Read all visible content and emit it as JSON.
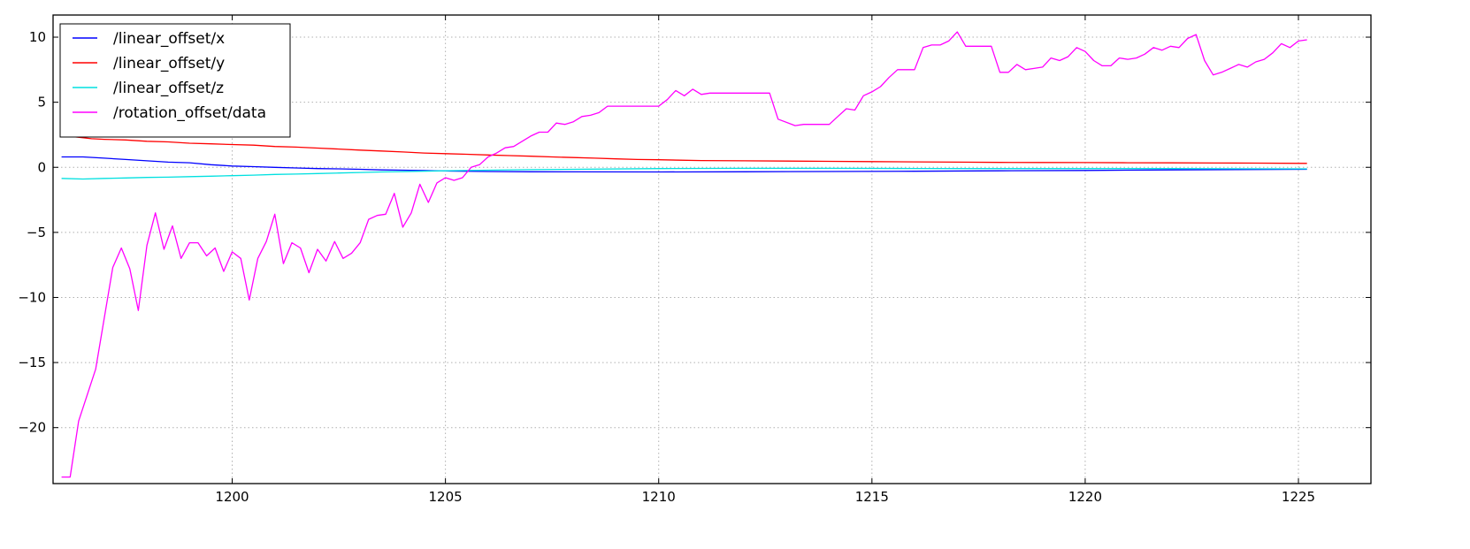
{
  "chart_data": {
    "type": "line",
    "title": "",
    "xlabel": "",
    "ylabel": "",
    "xlim": [
      1195.8,
      1226.7
    ],
    "ylim": [
      -24.3,
      11.7
    ],
    "grid": true,
    "legend_position": "upper-left",
    "xticks": [
      1200,
      1205,
      1210,
      1215,
      1220,
      1225
    ],
    "xtick_labels": [
      "1200",
      "1205",
      "1210",
      "1215",
      "1220",
      "1225"
    ],
    "yticks": [
      10,
      5,
      0,
      -5,
      -10,
      -15,
      -20
    ],
    "ytick_labels": [
      "10",
      "5",
      "0",
      "−5",
      "−10",
      "−15",
      "−20"
    ],
    "series": [
      {
        "name": "/linear_offset/x",
        "color": "#0000ff",
        "points": [
          [
            1196.0,
            0.8
          ],
          [
            1196.5,
            0.8
          ],
          [
            1197.0,
            0.7
          ],
          [
            1197.5,
            0.6
          ],
          [
            1198.0,
            0.5
          ],
          [
            1198.5,
            0.4
          ],
          [
            1199.0,
            0.35
          ],
          [
            1199.5,
            0.2
          ],
          [
            1200.0,
            0.1
          ],
          [
            1200.5,
            0.05
          ],
          [
            1201.0,
            0.0
          ],
          [
            1201.5,
            -0.05
          ],
          [
            1202.0,
            -0.1
          ],
          [
            1202.5,
            -0.12
          ],
          [
            1203.0,
            -0.15
          ],
          [
            1203.5,
            -0.2
          ],
          [
            1204.0,
            -0.22
          ],
          [
            1204.5,
            -0.25
          ],
          [
            1205.0,
            -0.28
          ],
          [
            1206.0,
            -0.32
          ],
          [
            1207.0,
            -0.34
          ],
          [
            1208.0,
            -0.35
          ],
          [
            1210.0,
            -0.36
          ],
          [
            1212.0,
            -0.34
          ],
          [
            1214.0,
            -0.32
          ],
          [
            1216.0,
            -0.3
          ],
          [
            1218.0,
            -0.27
          ],
          [
            1220.0,
            -0.24
          ],
          [
            1222.0,
            -0.2
          ],
          [
            1225.2,
            -0.15
          ]
        ]
      },
      {
        "name": "/linear_offset/y",
        "color": "#ff0000",
        "points": [
          [
            1196.0,
            2.35
          ],
          [
            1196.3,
            2.35
          ],
          [
            1196.7,
            2.2
          ],
          [
            1197.0,
            2.15
          ],
          [
            1197.5,
            2.1
          ],
          [
            1198.0,
            2.0
          ],
          [
            1198.5,
            1.95
          ],
          [
            1199.0,
            1.85
          ],
          [
            1199.5,
            1.8
          ],
          [
            1200.0,
            1.75
          ],
          [
            1200.5,
            1.7
          ],
          [
            1201.0,
            1.6
          ],
          [
            1201.5,
            1.55
          ],
          [
            1202.0,
            1.48
          ],
          [
            1202.5,
            1.4
          ],
          [
            1203.0,
            1.32
          ],
          [
            1203.5,
            1.25
          ],
          [
            1204.0,
            1.18
          ],
          [
            1204.5,
            1.1
          ],
          [
            1205.0,
            1.05
          ],
          [
            1205.5,
            1.0
          ],
          [
            1206.0,
            0.95
          ],
          [
            1206.5,
            0.9
          ],
          [
            1207.0,
            0.85
          ],
          [
            1207.5,
            0.8
          ],
          [
            1208.0,
            0.75
          ],
          [
            1208.5,
            0.7
          ],
          [
            1209.0,
            0.65
          ],
          [
            1209.5,
            0.6
          ],
          [
            1210.0,
            0.58
          ],
          [
            1210.5,
            0.55
          ],
          [
            1211.0,
            0.52
          ],
          [
            1212.0,
            0.5
          ],
          [
            1213.0,
            0.48
          ],
          [
            1214.0,
            0.46
          ],
          [
            1215.0,
            0.44
          ],
          [
            1216.0,
            0.42
          ],
          [
            1217.0,
            0.4
          ],
          [
            1218.0,
            0.38
          ],
          [
            1219.0,
            0.37
          ],
          [
            1220.0,
            0.36
          ],
          [
            1221.0,
            0.35
          ],
          [
            1222.0,
            0.34
          ],
          [
            1223.0,
            0.33
          ],
          [
            1224.0,
            0.32
          ],
          [
            1225.2,
            0.3
          ]
        ]
      },
      {
        "name": "/linear_offset/z",
        "color": "#00e0e0",
        "points": [
          [
            1196.0,
            -0.85
          ],
          [
            1196.5,
            -0.9
          ],
          [
            1197.0,
            -0.85
          ],
          [
            1197.5,
            -0.82
          ],
          [
            1198.0,
            -0.78
          ],
          [
            1198.5,
            -0.76
          ],
          [
            1199.0,
            -0.72
          ],
          [
            1199.5,
            -0.68
          ],
          [
            1200.0,
            -0.64
          ],
          [
            1200.5,
            -0.6
          ],
          [
            1201.0,
            -0.55
          ],
          [
            1201.5,
            -0.52
          ],
          [
            1202.0,
            -0.48
          ],
          [
            1202.5,
            -0.44
          ],
          [
            1203.0,
            -0.4
          ],
          [
            1203.5,
            -0.36
          ],
          [
            1204.0,
            -0.33
          ],
          [
            1205.0,
            -0.27
          ],
          [
            1206.0,
            -0.22
          ],
          [
            1207.0,
            -0.18
          ],
          [
            1208.0,
            -0.15
          ],
          [
            1210.0,
            -0.1
          ],
          [
            1212.0,
            -0.08
          ],
          [
            1214.0,
            -0.08
          ],
          [
            1216.0,
            -0.09
          ],
          [
            1218.0,
            -0.1
          ],
          [
            1220.0,
            -0.1
          ],
          [
            1222.0,
            -0.1
          ],
          [
            1225.2,
            -0.12
          ]
        ]
      },
      {
        "name": "/rotation_offset/data",
        "color": "#ff00ff",
        "points": [
          [
            1196.0,
            -23.8
          ],
          [
            1196.2,
            -23.8
          ],
          [
            1196.4,
            -19.5
          ],
          [
            1196.8,
            -15.5
          ],
          [
            1197.2,
            -7.7
          ],
          [
            1197.4,
            -6.2
          ],
          [
            1197.6,
            -7.8
          ],
          [
            1197.8,
            -11.0
          ],
          [
            1198.0,
            -6.0
          ],
          [
            1198.2,
            -3.5
          ],
          [
            1198.4,
            -6.3
          ],
          [
            1198.6,
            -4.5
          ],
          [
            1198.8,
            -7.0
          ],
          [
            1199.0,
            -5.8
          ],
          [
            1199.2,
            -5.8
          ],
          [
            1199.4,
            -6.8
          ],
          [
            1199.6,
            -6.2
          ],
          [
            1199.8,
            -8.0
          ],
          [
            1200.0,
            -6.5
          ],
          [
            1200.2,
            -7.0
          ],
          [
            1200.4,
            -10.2
          ],
          [
            1200.6,
            -7.0
          ],
          [
            1200.8,
            -5.7
          ],
          [
            1201.0,
            -3.6
          ],
          [
            1201.2,
            -7.4
          ],
          [
            1201.4,
            -5.8
          ],
          [
            1201.6,
            -6.2
          ],
          [
            1201.8,
            -8.1
          ],
          [
            1202.0,
            -6.3
          ],
          [
            1202.2,
            -7.2
          ],
          [
            1202.4,
            -5.7
          ],
          [
            1202.6,
            -7.0
          ],
          [
            1202.8,
            -6.6
          ],
          [
            1203.0,
            -5.8
          ],
          [
            1203.2,
            -4.0
          ],
          [
            1203.4,
            -3.7
          ],
          [
            1203.6,
            -3.6
          ],
          [
            1203.8,
            -2.0
          ],
          [
            1204.0,
            -4.6
          ],
          [
            1204.2,
            -3.5
          ],
          [
            1204.4,
            -1.3
          ],
          [
            1204.6,
            -2.7
          ],
          [
            1204.8,
            -1.2
          ],
          [
            1205.0,
            -0.8
          ],
          [
            1205.2,
            -1.0
          ],
          [
            1205.4,
            -0.8
          ],
          [
            1205.6,
            0.0
          ],
          [
            1205.8,
            0.2
          ],
          [
            1206.0,
            0.8
          ],
          [
            1206.2,
            1.1
          ],
          [
            1206.4,
            1.5
          ],
          [
            1206.6,
            1.6
          ],
          [
            1206.8,
            2.0
          ],
          [
            1207.0,
            2.4
          ],
          [
            1207.2,
            2.7
          ],
          [
            1207.4,
            2.7
          ],
          [
            1207.6,
            3.4
          ],
          [
            1207.8,
            3.3
          ],
          [
            1208.0,
            3.5
          ],
          [
            1208.2,
            3.9
          ],
          [
            1208.4,
            4.0
          ],
          [
            1208.6,
            4.2
          ],
          [
            1208.8,
            4.7
          ],
          [
            1209.0,
            4.7
          ],
          [
            1210.0,
            4.7
          ],
          [
            1210.2,
            5.2
          ],
          [
            1210.4,
            5.9
          ],
          [
            1210.6,
            5.5
          ],
          [
            1210.8,
            6.0
          ],
          [
            1211.0,
            5.6
          ],
          [
            1211.2,
            5.7
          ],
          [
            1212.6,
            5.7
          ],
          [
            1212.8,
            3.7
          ],
          [
            1213.2,
            3.2
          ],
          [
            1213.4,
            3.3
          ],
          [
            1214.0,
            3.3
          ],
          [
            1214.2,
            3.9
          ],
          [
            1214.4,
            4.5
          ],
          [
            1214.6,
            4.4
          ],
          [
            1214.8,
            5.5
          ],
          [
            1215.0,
            5.8
          ],
          [
            1215.2,
            6.2
          ],
          [
            1215.4,
            6.9
          ],
          [
            1215.6,
            7.5
          ],
          [
            1216.0,
            7.5
          ],
          [
            1216.2,
            9.2
          ],
          [
            1216.4,
            9.4
          ],
          [
            1216.6,
            9.4
          ],
          [
            1216.8,
            9.7
          ],
          [
            1217.0,
            10.4
          ],
          [
            1217.2,
            9.3
          ],
          [
            1217.8,
            9.3
          ],
          [
            1218.0,
            7.3
          ],
          [
            1218.2,
            7.3
          ],
          [
            1218.4,
            7.9
          ],
          [
            1218.6,
            7.5
          ],
          [
            1218.8,
            7.6
          ],
          [
            1219.0,
            7.7
          ],
          [
            1219.2,
            8.4
          ],
          [
            1219.4,
            8.2
          ],
          [
            1219.6,
            8.5
          ],
          [
            1219.8,
            9.2
          ],
          [
            1220.0,
            8.9
          ],
          [
            1220.2,
            8.2
          ],
          [
            1220.4,
            7.8
          ],
          [
            1220.6,
            7.8
          ],
          [
            1220.8,
            8.4
          ],
          [
            1221.0,
            8.3
          ],
          [
            1221.2,
            8.4
          ],
          [
            1221.4,
            8.7
          ],
          [
            1221.6,
            9.2
          ],
          [
            1221.8,
            9.0
          ],
          [
            1222.0,
            9.3
          ],
          [
            1222.2,
            9.2
          ],
          [
            1222.4,
            9.9
          ],
          [
            1222.6,
            10.2
          ],
          [
            1222.8,
            8.2
          ],
          [
            1223.0,
            7.1
          ],
          [
            1223.2,
            7.3
          ],
          [
            1223.4,
            7.6
          ],
          [
            1223.6,
            7.9
          ],
          [
            1223.8,
            7.7
          ],
          [
            1224.0,
            8.1
          ],
          [
            1224.2,
            8.3
          ],
          [
            1224.4,
            8.8
          ],
          [
            1224.6,
            9.5
          ],
          [
            1224.8,
            9.2
          ],
          [
            1225.0,
            9.7
          ],
          [
            1225.2,
            9.8
          ]
        ]
      }
    ]
  }
}
